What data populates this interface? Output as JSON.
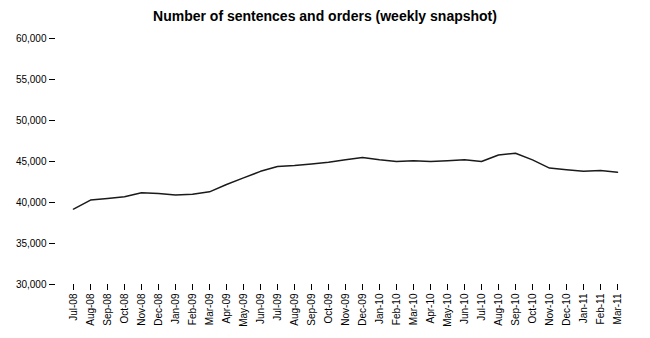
{
  "chart_data": {
    "type": "line",
    "title": "Number of sentences and orders (weekly snapshot)",
    "categories": [
      "Jul-08",
      "Aug-08",
      "Sep-08",
      "Oct-08",
      "Nov-08",
      "Dec-08",
      "Jan-09",
      "Feb-09",
      "Mar-09",
      "Apr-09",
      "May-09",
      "Jun-09",
      "Jul-09",
      "Aug-09",
      "Sep-09",
      "Oct-09",
      "Nov-09",
      "Dec-09",
      "Jan-10",
      "Feb-10",
      "Mar-10",
      "Apr-10",
      "May-10",
      "Jun-10",
      "Jul-10",
      "Aug-10",
      "Sep-10",
      "Oct-10",
      "Nov-10",
      "Dec-10",
      "Jan-11",
      "Feb-11",
      "Mar-11"
    ],
    "values": [
      39200,
      40300,
      40500,
      40700,
      41200,
      41100,
      40900,
      41000,
      41300,
      42200,
      43000,
      43800,
      44400,
      44500,
      44700,
      44900,
      45200,
      45500,
      45200,
      45000,
      45100,
      45000,
      45100,
      45200,
      45000,
      45800,
      46000,
      45200,
      44200,
      44000,
      43800,
      43900,
      43700
    ],
    "color": "#1a1a1a",
    "ylim": [
      30000,
      60000
    ],
    "yticks": [
      {
        "value": 30000,
        "label": "30,000"
      },
      {
        "value": 35000,
        "label": "35,000"
      },
      {
        "value": 40000,
        "label": "40,000"
      },
      {
        "value": 45000,
        "label": "45,000"
      },
      {
        "value": 50000,
        "label": "50,000"
      },
      {
        "value": 55000,
        "label": "55,000"
      },
      {
        "value": 60000,
        "label": "60,000"
      }
    ],
    "grid": false
  }
}
